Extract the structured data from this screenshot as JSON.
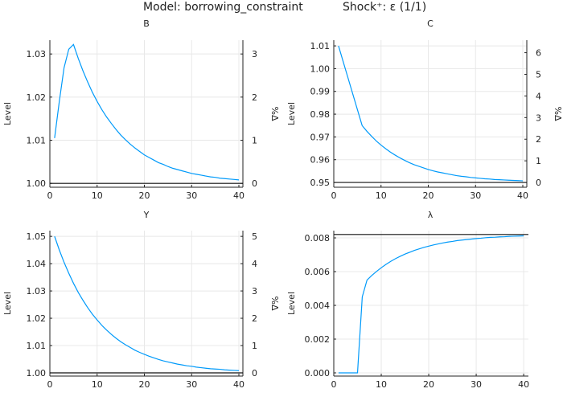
{
  "chart_data": {
    "type": "line",
    "title_model": "Model: borrowing_constraint",
    "title_shock": "Shock⁺: ε  (1/1)",
    "x": [
      1,
      2,
      3,
      4,
      5,
      6,
      7,
      8,
      9,
      10,
      11,
      12,
      13,
      14,
      15,
      16,
      17,
      18,
      19,
      20,
      21,
      22,
      23,
      24,
      25,
      26,
      27,
      28,
      29,
      30,
      31,
      32,
      33,
      34,
      35,
      36,
      37,
      38,
      39,
      40
    ],
    "line_color": "#009AFA",
    "panels": [
      {
        "title": "B",
        "ylabel": "Level",
        "ylabel_right": "%Δ",
        "steady_state": 1.0,
        "xlim": [
          0,
          40.85
        ],
        "ylim": [
          0.9991,
          1.0332
        ],
        "xticks": [
          0,
          10,
          20,
          30,
          40
        ],
        "yticks": [
          1.0,
          1.01,
          1.02,
          1.03
        ],
        "ytick_labels": [
          "1.00",
          "1.01",
          "1.02",
          "1.03"
        ],
        "rticks": [
          0,
          1,
          2,
          3
        ],
        "values": [
          1.0105,
          1.019,
          1.0268,
          1.0311,
          1.0322,
          1.029,
          1.0261,
          1.0235,
          1.0211,
          1.019,
          1.0171,
          1.0154,
          1.0139,
          1.0125,
          1.0112,
          1.0101,
          1.0091,
          1.0082,
          1.0074,
          1.0066,
          1.006,
          1.0054,
          1.0048,
          1.0044,
          1.0039,
          1.0035,
          1.0032,
          1.0029,
          1.0026,
          1.0023,
          1.0021,
          1.0019,
          1.0017,
          1.0015,
          1.0014,
          1.0012,
          1.0011,
          1.001,
          1.0009,
          1.0008
        ]
      },
      {
        "title": "C",
        "ylabel": "Level",
        "ylabel_right": "%Δ",
        "steady_state": 0.95,
        "xlim": [
          0,
          40.85
        ],
        "ylim": [
          0.9479,
          1.0125
        ],
        "xticks": [
          0,
          10,
          20,
          30,
          40
        ],
        "yticks": [
          0.95,
          0.96,
          0.97,
          0.98,
          0.99,
          1.0,
          1.01
        ],
        "ytick_labels": [
          "0.95",
          "0.96",
          "0.97",
          "0.98",
          "0.99",
          "1.00",
          "1.01"
        ],
        "rticks": [
          0,
          1,
          2,
          3,
          4,
          5,
          6
        ],
        "values": [
          1.01,
          1.003,
          0.996,
          0.989,
          0.982,
          0.975,
          0.9725,
          0.9703,
          0.9682,
          0.9664,
          0.9648,
          0.9633,
          0.962,
          0.9608,
          0.9597,
          0.9587,
          0.9578,
          0.9571,
          0.9564,
          0.9557,
          0.9551,
          0.9546,
          0.9542,
          0.9538,
          0.9534,
          0.953,
          0.9527,
          0.9525,
          0.9522,
          0.952,
          0.9518,
          0.9516,
          0.9515,
          0.9513,
          0.9512,
          0.9511,
          0.951,
          0.9509,
          0.9508,
          0.9507
        ]
      },
      {
        "title": "Y",
        "ylabel": "Level",
        "ylabel_right": "%Δ",
        "steady_state": 1.0,
        "xlim": [
          0,
          40.85
        ],
        "ylim": [
          0.99882,
          1.0521
        ],
        "xticks": [
          0,
          10,
          20,
          30,
          40
        ],
        "yticks": [
          1.0,
          1.01,
          1.02,
          1.03,
          1.04,
          1.05
        ],
        "ytick_labels": [
          "1.00",
          "1.01",
          "1.02",
          "1.03",
          "1.04",
          "1.05"
        ],
        "rticks": [
          0,
          1,
          2,
          3,
          4,
          5
        ],
        "values": [
          1.05,
          1.045,
          1.0405,
          1.0365,
          1.0328,
          1.0295,
          1.0266,
          1.0239,
          1.0215,
          1.0194,
          1.0174,
          1.0157,
          1.0141,
          1.0127,
          1.0114,
          1.0103,
          1.0093,
          1.0083,
          1.0075,
          1.0068,
          1.0061,
          1.0055,
          1.0049,
          1.0044,
          1.004,
          1.0036,
          1.0032,
          1.0029,
          1.0026,
          1.0024,
          1.0021,
          1.0019,
          1.0017,
          1.0015,
          1.0014,
          1.0013,
          1.0011,
          1.001,
          1.0009,
          1.0008
        ]
      },
      {
        "title": "λ",
        "ylabel": "Level",
        "ylabel_right": null,
        "steady_state": 0.0082,
        "xlim": [
          0,
          41.0
        ],
        "ylim": [
          -0.00019,
          0.00843
        ],
        "xticks": [
          0,
          10,
          20,
          30,
          40
        ],
        "yticks": [
          0,
          0.002,
          0.004,
          0.006,
          0.008
        ],
        "ytick_labels": [
          "0.000",
          "0.002",
          "0.004",
          "0.006",
          "0.008"
        ],
        "rticks": [],
        "values": [
          0,
          0,
          0,
          0,
          0,
          0.0045,
          0.0055,
          0.00577,
          0.00601,
          0.00623,
          0.00643,
          0.00661,
          0.00677,
          0.00691,
          0.00704,
          0.00715,
          0.00726,
          0.00735,
          0.00744,
          0.00751,
          0.00758,
          0.00764,
          0.0077,
          0.00775,
          0.00779,
          0.00784,
          0.00787,
          0.0079,
          0.00793,
          0.00796,
          0.00798,
          0.00801,
          0.00803,
          0.00804,
          0.00806,
          0.00807,
          0.00809,
          0.0081,
          0.00811,
          0.00812
        ]
      }
    ]
  }
}
